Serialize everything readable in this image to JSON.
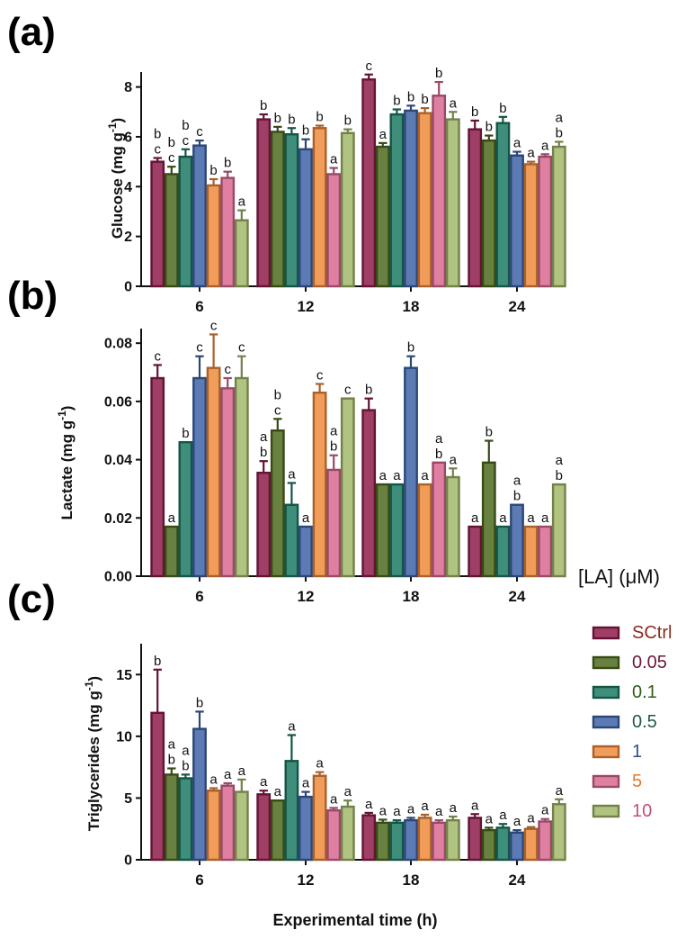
{
  "figure": {
    "x_axis_title": "Experimental time (h)",
    "legend_title": "[LA] (μM)"
  },
  "legend": [
    {
      "name": "SCtrl",
      "color": "#8e1d4b",
      "text_color": "#8a2a1e"
    },
    {
      "name": "0.05",
      "color": "#4e6b1e",
      "text_color": "#6a1a3a"
    },
    {
      "name": "0.1",
      "color": "#1d7a64",
      "text_color": "#2f5e18"
    },
    {
      "name": "0.5",
      "color": "#3f64a8",
      "text_color": "#1c5a4a"
    },
    {
      "name": "1",
      "color": "#f08a3c",
      "text_color": "#2e4f86"
    },
    {
      "name": "5",
      "color": "#d96a93",
      "text_color": "#e07a30"
    },
    {
      "name": "10",
      "color": "#a3b86a",
      "text_color": "#c0507a"
    }
  ],
  "chart_data": [
    {
      "panel": "(a)",
      "type": "bar",
      "ylabel": "Glucose (mg g",
      "ylabel_sup": "-1",
      "ylabel_end": ")",
      "ylim": [
        0,
        8.6
      ],
      "yticks": [
        "0",
        "2",
        "4",
        "6",
        "8"
      ],
      "categories": [
        "6",
        "12",
        "18",
        "24"
      ],
      "series": [
        {
          "name": "SCtrl",
          "values": [
            5.0,
            6.7,
            8.3,
            6.3
          ],
          "errors": [
            0.15,
            0.2,
            0.2,
            0.35
          ],
          "letters": [
            "b\nc",
            "b",
            "c",
            "b"
          ]
        },
        {
          "name": "0.05",
          "values": [
            4.5,
            6.2,
            5.6,
            5.85
          ],
          "errors": [
            0.3,
            0.2,
            0.15,
            0.2
          ],
          "letters": [
            "b\nc",
            "b",
            "a",
            "b"
          ]
        },
        {
          "name": "0.1",
          "values": [
            5.2,
            6.1,
            6.9,
            6.55
          ],
          "errors": [
            0.3,
            0.25,
            0.2,
            0.25
          ],
          "letters": [
            "b\nc",
            "b",
            "b",
            "b"
          ]
        },
        {
          "name": "0.5",
          "values": [
            5.65,
            5.5,
            7.05,
            5.25
          ],
          "errors": [
            0.2,
            0.4,
            0.2,
            0.15
          ],
          "letters": [
            "c",
            "b",
            "b",
            "a"
          ]
        },
        {
          "name": "1",
          "values": [
            4.05,
            6.35,
            6.95,
            4.9
          ],
          "errors": [
            0.25,
            0.1,
            0.2,
            0.1
          ],
          "letters": [
            "b",
            "b",
            "b",
            "a"
          ]
        },
        {
          "name": "5",
          "values": [
            4.35,
            4.5,
            7.65,
            5.2
          ],
          "errors": [
            0.25,
            0.25,
            0.55,
            0.1
          ],
          "letters": [
            "b",
            "a",
            "b",
            "a"
          ]
        },
        {
          "name": "10",
          "values": [
            2.65,
            6.15,
            6.7,
            5.6
          ],
          "errors": [
            0.4,
            0.15,
            0.3,
            0.2
          ],
          "letters": [
            "a",
            "b",
            "a",
            "a\nb"
          ]
        }
      ]
    },
    {
      "panel": "(b)",
      "type": "bar",
      "ylabel": "Lactate (mg g",
      "ylabel_sup": "-1",
      "ylabel_end": ")",
      "ylim": [
        0,
        0.085
      ],
      "yticks": [
        "0.00",
        "0.02",
        "0.04",
        "0.06",
        "0.08"
      ],
      "categories": [
        "6",
        "12",
        "18",
        "24"
      ],
      "series": [
        {
          "name": "SCtrl",
          "values": [
            0.068,
            0.0355,
            0.057,
            0.017
          ],
          "errors": [
            0.0045,
            0.004,
            0.004,
            0.0
          ],
          "letters": [
            "c",
            "a\nb",
            "b",
            "a"
          ]
        },
        {
          "name": "0.05",
          "values": [
            0.017,
            0.05,
            0.0315,
            0.039
          ],
          "errors": [
            0.0,
            0.004,
            0.0,
            0.0075
          ],
          "letters": [
            "a",
            "b\nc",
            "a",
            "b"
          ]
        },
        {
          "name": "0.1",
          "values": [
            0.046,
            0.0245,
            0.0315,
            0.017
          ],
          "errors": [
            0.0,
            0.0075,
            0.0,
            0.0
          ],
          "letters": [
            "b",
            "a",
            "a",
            "a"
          ]
        },
        {
          "name": "0.5",
          "values": [
            0.068,
            0.017,
            0.0715,
            0.0245
          ],
          "errors": [
            0.0075,
            0.0,
            0.004,
            0.0
          ],
          "letters": [
            "c",
            "a",
            "b",
            "a\nb"
          ]
        },
        {
          "name": "1",
          "values": [
            0.0715,
            0.063,
            0.0315,
            0.017
          ],
          "errors": [
            0.0115,
            0.003,
            0.0,
            0.0
          ],
          "letters": [
            "c",
            "c",
            "a",
            "a"
          ]
        },
        {
          "name": "5",
          "values": [
            0.0645,
            0.0365,
            0.039,
            0.017
          ],
          "errors": [
            0.0035,
            0.005,
            0.0,
            0.0
          ],
          "letters": [
            "c",
            "a\nb",
            "a\nb",
            "a"
          ]
        },
        {
          "name": "10",
          "values": [
            0.068,
            0.061,
            0.034,
            0.0315
          ],
          "errors": [
            0.0075,
            0.0,
            0.003,
            0.0
          ],
          "letters": [
            "c",
            "c",
            "a",
            "a\nb"
          ]
        }
      ]
    },
    {
      "panel": "(c)",
      "type": "bar",
      "ylabel": "Triglycerides (mg g",
      "ylabel_sup": "-1",
      "ylabel_end": ")",
      "ylim": [
        0,
        17.5
      ],
      "yticks": [
        "0",
        "5",
        "10",
        "15"
      ],
      "categories": [
        "6",
        "12",
        "18",
        "24"
      ],
      "series": [
        {
          "name": "SCtrl",
          "values": [
            11.9,
            5.3,
            3.6,
            3.4
          ],
          "errors": [
            3.5,
            0.3,
            0.2,
            0.3
          ],
          "letters": [
            "b",
            "a",
            "a",
            "a"
          ]
        },
        {
          "name": "0.05",
          "values": [
            6.9,
            4.8,
            3.0,
            2.4
          ],
          "errors": [
            0.5,
            0.0,
            0.25,
            0.2
          ],
          "letters": [
            "a\nb",
            "a",
            "a",
            "a"
          ]
        },
        {
          "name": "0.1",
          "values": [
            6.6,
            8.0,
            3.0,
            2.6
          ],
          "errors": [
            0.3,
            2.1,
            0.2,
            0.3
          ],
          "letters": [
            "a\nb",
            "a",
            "a",
            "a"
          ]
        },
        {
          "name": "0.5",
          "values": [
            10.6,
            5.1,
            3.2,
            2.2
          ],
          "errors": [
            1.4,
            0.4,
            0.2,
            0.2
          ],
          "letters": [
            "b",
            "a",
            "a",
            "a"
          ]
        },
        {
          "name": "1",
          "values": [
            5.6,
            6.8,
            3.4,
            2.5
          ],
          "errors": [
            0.2,
            0.3,
            0.25,
            0.15
          ],
          "letters": [
            "a",
            "a",
            "a",
            "a"
          ]
        },
        {
          "name": "5",
          "values": [
            6.0,
            4.0,
            3.0,
            3.1
          ],
          "errors": [
            0.2,
            0.2,
            0.2,
            0.2
          ],
          "letters": [
            "a",
            "a",
            "a",
            "a"
          ]
        },
        {
          "name": "10",
          "values": [
            5.5,
            4.3,
            3.2,
            4.5
          ],
          "errors": [
            1.0,
            0.5,
            0.3,
            0.4
          ],
          "letters": [
            "a",
            "a",
            "a",
            "a"
          ]
        }
      ]
    }
  ]
}
